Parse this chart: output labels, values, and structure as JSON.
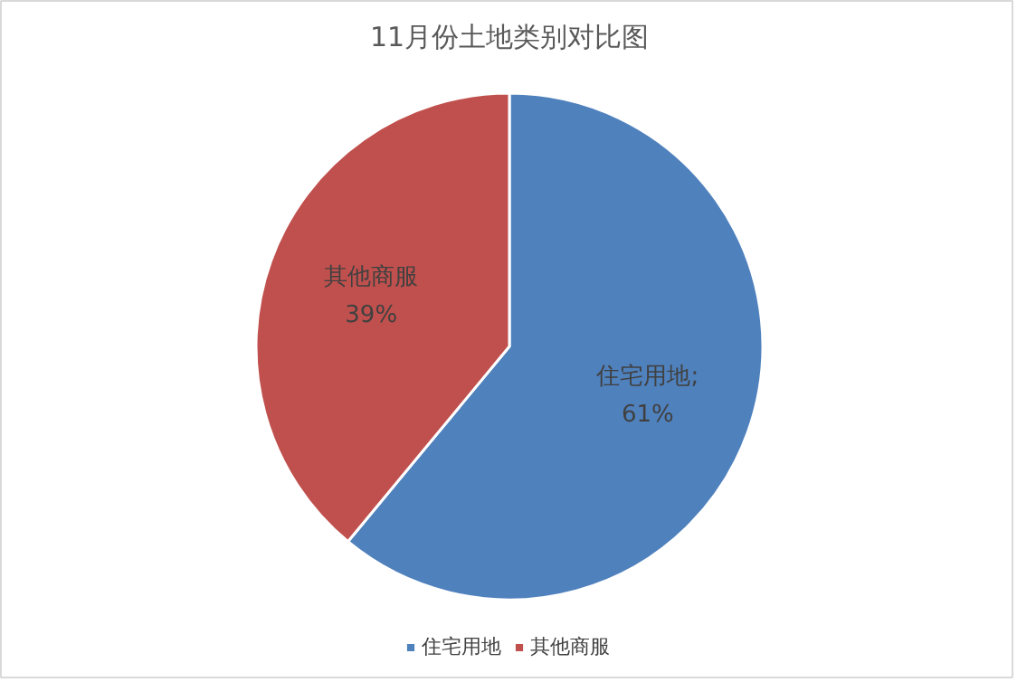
{
  "chart_data": {
    "type": "pie",
    "title": "11月份土地类别对比图",
    "categories": [
      "住宅用地",
      "其他商服"
    ],
    "values": [
      61,
      39
    ],
    "colors": [
      "#4f81bd",
      "#c0504d"
    ],
    "value_labels": [
      "住宅用地;\n61%",
      "其他商服\n39%"
    ],
    "legend": "bottom"
  }
}
